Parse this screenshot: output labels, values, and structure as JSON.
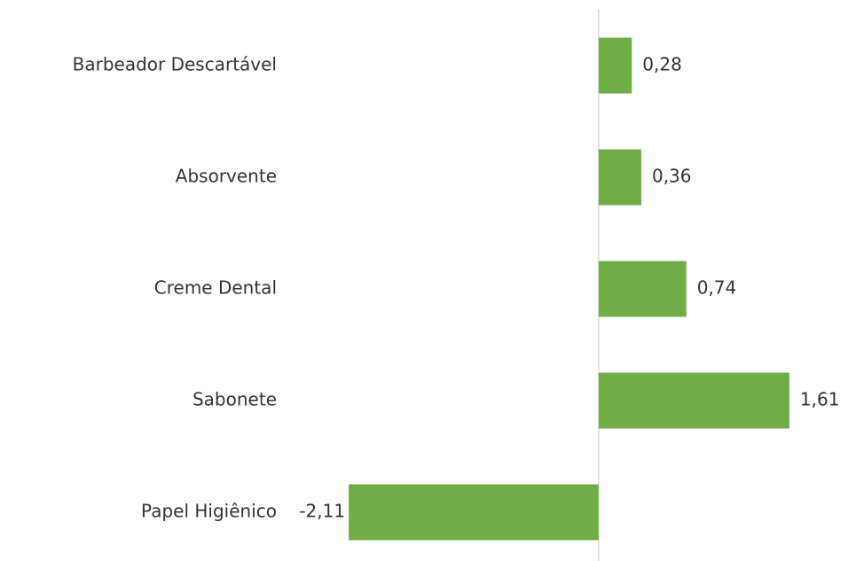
{
  "chart_data": {
    "type": "hbar",
    "categories": [
      "Barbeador Descartável",
      "Absorvente",
      "Creme Dental",
      "Sabonete",
      "Papel Higiênico"
    ],
    "values": [
      0.28,
      0.36,
      0.74,
      1.61,
      -2.11
    ],
    "value_labels": [
      "0,28",
      "0,36",
      "0,74",
      "1,61",
      "-2,11"
    ],
    "color": "#70ad47",
    "xlim": [
      -2.5,
      2
    ]
  }
}
